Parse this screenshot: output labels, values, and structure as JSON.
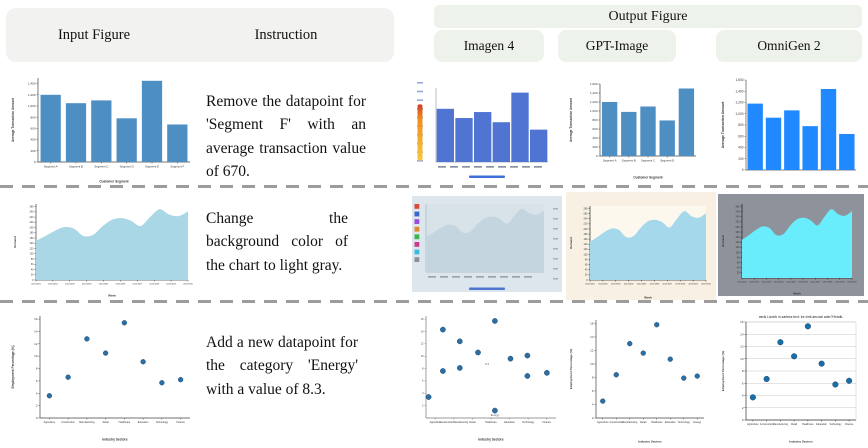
{
  "header": {
    "input_figure": "Input Figure",
    "instruction": "Instruction",
    "output_figure": "Output Figure",
    "models": [
      {
        "label": "Imagen 4"
      },
      {
        "label": "GPT-Image"
      },
      {
        "label": "OmniGen 2"
      }
    ]
  },
  "rows": [
    {
      "instruction": "Remove the datapoint for 'Segment F' with an average transaction value of 670."
    },
    {
      "instruction": "Change the background color of the chart to light gray."
    },
    {
      "instruction": "Add a new datapoint for the category 'Energy' with a value of 8.3."
    }
  ],
  "palette": {
    "header_green": "#edf3ea",
    "header_gray": "#f2f2f0",
    "separator_gray": "#9c9c9c"
  },
  "chart_data": [
    {
      "id": "input-bar",
      "type": "bar",
      "categories": [
        "Segment A",
        "Segment B",
        "Segment C",
        "Segment D",
        "Segment E",
        "Segment F"
      ],
      "values": [
        1200,
        1050,
        1100,
        780,
        1450,
        670
      ],
      "ylim": [
        0,
        1500
      ],
      "yticks": [
        0,
        200,
        400,
        600,
        800,
        1000,
        1200,
        1400
      ],
      "ytick_labels": [
        "0",
        "200",
        "400",
        "600",
        "800",
        "1,000",
        "1,200",
        "1,400"
      ],
      "xlabel": "Customer Segment",
      "ylabel": "Average Transaction Amount",
      "colors": {
        "fill": "#4d8ec3",
        "axis": "#444",
        "bg": "#ffffff"
      }
    },
    {
      "id": "imagen-bar",
      "type": "bar",
      "categories": [
        "",
        "",
        "",
        "",
        "",
        ""
      ],
      "values": [
        1150,
        950,
        1080,
        860,
        1500,
        700
      ],
      "ylim": [
        0,
        1600
      ],
      "yticks": [],
      "ytick_labels": [],
      "xlabel": "",
      "ylabel": "",
      "colors": {
        "fill": "#4f74d2",
        "axis": "#9aa4b2",
        "bg": "#ffffff"
      },
      "decorations": [
        {
          "kind": "tick-column",
          "color": "#6f84c9"
        },
        {
          "kind": "crayon",
          "colors": [
            "#d23b2a",
            "#f08c1e",
            "#f6c93c"
          ]
        },
        {
          "kind": "scribble-bottom",
          "color": "#8a93a0"
        },
        {
          "kind": "hbar",
          "color": "#3f6fd8"
        }
      ]
    },
    {
      "id": "gpt-bar",
      "type": "bar",
      "categories": [
        "Segment A",
        "Segment B",
        "Segment C",
        "Segment D",
        ""
      ],
      "values": [
        1200,
        980,
        1100,
        790,
        1500
      ],
      "ylim": [
        0,
        1600
      ],
      "yticks": [
        0,
        200,
        400,
        600,
        800,
        1000,
        1200,
        1400,
        1600
      ],
      "ytick_labels": [
        "0",
        "200",
        "400",
        "600",
        "800",
        "1,000",
        "1,200",
        "1,400",
        "1,600"
      ],
      "xlabel": "Customer Segment",
      "ylabel": "Average Transaction Amount",
      "colors": {
        "fill": "#4d8ec3",
        "axis": "#444",
        "bg": "#ffffff"
      }
    },
    {
      "id": "omnigen-bar",
      "type": "bar",
      "categories": [
        "",
        "",
        "",
        "",
        "",
        ""
      ],
      "values": [
        1180,
        930,
        1060,
        780,
        1440,
        640
      ],
      "ylim": [
        0,
        1600
      ],
      "yticks": [
        0,
        200,
        400,
        600,
        800,
        1000,
        1200,
        1400,
        1600
      ],
      "ytick_labels": [
        "0",
        "200",
        "400",
        "600",
        "800",
        "1,000",
        "1,200",
        "1,400",
        "1,600"
      ],
      "xlabel": "",
      "ylabel": "Average Transaction Amount",
      "colors": {
        "fill": "#2089ff",
        "axis": "#555",
        "bg": "#ffffff"
      }
    },
    {
      "id": "input-area",
      "type": "area",
      "x_labels": [
        "2023-W01",
        "2023-W02",
        "2023-W03",
        "2023-W04",
        "2023-W05",
        "2023-W06",
        "2023-W07",
        "2023-W08",
        "2023-W09",
        "2023-W10"
      ],
      "values": [
        150,
        168,
        188,
        202,
        196,
        168,
        172,
        205,
        230,
        236,
        226,
        206,
        240,
        270,
        250,
        244,
        262
      ],
      "ylim": [
        0,
        290
      ],
      "yticks": [
        0,
        20,
        40,
        60,
        80,
        100,
        120,
        140,
        160,
        180,
        200,
        220,
        240,
        260,
        280
      ],
      "ytick_labels": [
        "0",
        "20",
        "40",
        "60",
        "80",
        "100",
        "120",
        "140",
        "160",
        "180",
        "200",
        "220",
        "240",
        "260",
        "280"
      ],
      "xlabel": "Week",
      "ylabel": "Demand",
      "colors": {
        "fill": "#a9d7e6",
        "axis": "#444",
        "bg": "#ffffff"
      }
    },
    {
      "id": "imagen-area",
      "type": "area",
      "x_labels": [],
      "values": [
        150,
        168,
        188,
        202,
        196,
        168,
        172,
        205,
        230,
        236,
        226,
        206,
        240,
        270,
        250,
        244,
        262
      ],
      "ylim": [
        0,
        290
      ],
      "yticks": [],
      "ytick_labels": [],
      "xlabel": "",
      "ylabel": "",
      "colors": {
        "fill": "#c4d5df",
        "axis": "#aab4bd",
        "bg": "#dde6ec",
        "plot": "#d8e2e9"
      },
      "decorations": [
        {
          "kind": "palette",
          "colors": [
            "#d84b3a",
            "#3b66cc",
            "#9a4bd8",
            "#e08a2e",
            "#39b54a",
            "#cc3b8a",
            "#3bbcd8",
            "#8a8f98"
          ]
        },
        {
          "kind": "scribble-bottom",
          "color": "#9aa4ae"
        },
        {
          "kind": "hbar",
          "color": "#4f74d2"
        },
        {
          "kind": "scribble-right",
          "color": "#a8b2bc"
        }
      ]
    },
    {
      "id": "gpt-area",
      "type": "area",
      "x_labels": [
        "2023-W01",
        "2023-W02",
        "2023-W03",
        "2023-W04",
        "2023-W05",
        "2023-W06",
        "2023-W07",
        "2023-W08",
        "2023-W09",
        "2023-W10"
      ],
      "values": [
        150,
        168,
        188,
        202,
        196,
        168,
        172,
        205,
        230,
        236,
        226,
        206,
        240,
        270,
        250,
        244,
        262
      ],
      "ylim": [
        0,
        290
      ],
      "yticks": [
        0,
        20,
        40,
        60,
        80,
        100,
        120,
        140,
        160,
        180,
        200,
        220,
        240,
        260,
        280
      ],
      "ytick_labels": [
        "0",
        "20",
        "40",
        "60",
        "80",
        "100",
        "120",
        "140",
        "160",
        "180",
        "200",
        "220",
        "240",
        "260",
        "280"
      ],
      "xlabel": "Week",
      "ylabel": "Demand",
      "colors": {
        "fill": "#a5d8ea",
        "axis": "#333",
        "bg": "#f8f1e3",
        "plot": "#fcf8ee"
      }
    },
    {
      "id": "omnigen-area",
      "type": "area",
      "x_labels": [
        "2023-W01",
        "2023-W02",
        "2023-W03",
        "2023-W04",
        "2023-W05",
        "2023-W06",
        "2023-W07",
        "2023-W08",
        "2023-W09",
        "2023-W10"
      ],
      "values": [
        150,
        168,
        188,
        202,
        196,
        168,
        172,
        205,
        230,
        236,
        226,
        206,
        240,
        270,
        250,
        244,
        262
      ],
      "ylim": [
        0,
        290
      ],
      "yticks": [
        20,
        40,
        60,
        80,
        100,
        120,
        140,
        160,
        180,
        200,
        220,
        240,
        260,
        280
      ],
      "ytick_labels": [
        "20",
        "40",
        "60",
        "80",
        "100",
        "120",
        "140",
        "160",
        "180",
        "200",
        "220",
        "240",
        "260",
        "280"
      ],
      "xlabel": "Week",
      "ylabel": "Demand",
      "colors": {
        "fill": "#69edfc",
        "axis": "#222",
        "bg": "#8d929b",
        "plot": "#8d929b"
      }
    },
    {
      "id": "input-scatter",
      "type": "scatter",
      "categories": [
        "Agriculture",
        "Construction",
        "Manufacturing",
        "Retail",
        "Healthcare",
        "Education",
        "Technology",
        "Finance"
      ],
      "values": [
        3.6,
        6.6,
        12.8,
        10.5,
        15.4,
        9.1,
        5.7,
        6.2
      ],
      "ylim": [
        0,
        16.5
      ],
      "yticks": [
        0,
        2,
        4,
        6,
        8,
        10,
        12,
        14,
        16
      ],
      "ytick_labels": [
        "0",
        "2",
        "4",
        "6",
        "8",
        "10",
        "12",
        "14",
        "16"
      ],
      "xlabel": "Industry Sectors",
      "ylabel": "Employment Percentage (%)",
      "colors": {
        "fill": "#2e6fa3",
        "edge": "#1b4f7a",
        "axis": "#444",
        "bg": "#ffffff"
      }
    },
    {
      "id": "imagen-scatter",
      "type": "scatter",
      "categories": [
        "Agriculture",
        "ConstructionManufacturing",
        "Retail",
        "Healthcare",
        "Education",
        "Technology",
        "Finance"
      ],
      "points": [
        {
          "x": 0.02,
          "y": 3.4
        },
        {
          "x": 0.13,
          "y": 14.3
        },
        {
          "x": 0.13,
          "y": 7.6
        },
        {
          "x": 0.26,
          "y": 12.4
        },
        {
          "x": 0.26,
          "y": 8.1
        },
        {
          "x": 0.4,
          "y": 10.6
        },
        {
          "x": 0.53,
          "y": 15.7
        },
        {
          "x": 0.53,
          "y": 1.2
        },
        {
          "x": 0.65,
          "y": 9.6
        },
        {
          "x": 0.78,
          "y": 10.1
        },
        {
          "x": 0.78,
          "y": 6.8
        },
        {
          "x": 0.93,
          "y": 7.3
        }
      ],
      "annotations": [
        {
          "x": 0.47,
          "y": 8.6,
          "text": "8.3"
        },
        {
          "x": 0.53,
          "y": 0.35,
          "text": "Energy"
        }
      ],
      "ylim": [
        0,
        16.5
      ],
      "yticks": [
        2,
        4,
        6,
        8,
        10,
        12,
        14,
        16
      ],
      "ytick_labels": [
        "2",
        "4",
        "6",
        "8",
        "10",
        "12",
        "14",
        "16"
      ],
      "xlabel": "Industry Sectors",
      "ylabel": "",
      "colors": {
        "fill": "#2e6fa3",
        "edge": "#1b4f7a",
        "axis": "#777",
        "bg": "#ffffff"
      }
    },
    {
      "id": "gpt-scatter",
      "type": "scatter",
      "categories": [
        "Agriculture",
        "Construction",
        "Manufacturing",
        "Retail",
        "Healthcare",
        "Education",
        "Technology",
        "Energy"
      ],
      "values": [
        4.5,
        8.4,
        13.0,
        11.6,
        15.8,
        10.7,
        7.9,
        8.2
      ],
      "ylim": [
        2,
        16.5
      ],
      "yticks": [
        2,
        4,
        6,
        8,
        10,
        12,
        14,
        16
      ],
      "ytick_labels": [
        "2",
        "4",
        "6",
        "8",
        "10",
        "12",
        "14",
        "16"
      ],
      "xlabel": "Industry Sectors",
      "ylabel": "Employment Percentage (%)",
      "colors": {
        "fill": "#2e6fa3",
        "edge": "#1b4f7a",
        "axis": "#444",
        "bg": "#ffffff"
      }
    },
    {
      "id": "omnigen-scatter",
      "type": "scatter",
      "title": "aeris Lizoirb in sarless text: lre xinit aecuwl arler?HshdiL",
      "categories": [
        "Agriculture",
        "Construction",
        "Manufacturing",
        "Retail",
        "Healthcare",
        "Education",
        "Technology",
        "Finance"
      ],
      "values": [
        3.7,
        6.7,
        12.7,
        10.4,
        15.3,
        9.2,
        5.8,
        6.4
      ],
      "ylim": [
        0,
        16
      ],
      "yticks": [
        0,
        2,
        4,
        6,
        8,
        10,
        12,
        14,
        16
      ],
      "ytick_labels": [
        "0",
        "2",
        "4",
        "6",
        "8",
        "10",
        "12",
        "14",
        "16"
      ],
      "grid": true,
      "box": true,
      "xlabel": "Industry Sectors",
      "ylabel": "Employment Percentage (%)",
      "colors": {
        "fill": "#1a6fa8",
        "edge": "#0f4a73",
        "axis": "#333",
        "grid": "#c8c8c8",
        "bg": "#ffffff"
      }
    }
  ]
}
